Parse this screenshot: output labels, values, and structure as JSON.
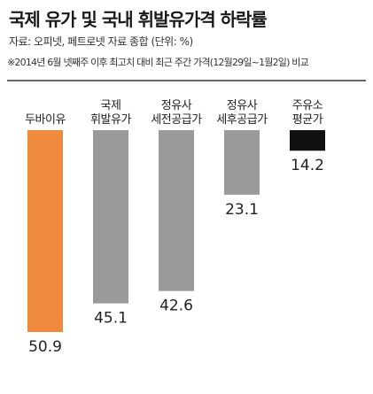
{
  "header": {
    "title": "국제 유가 및 국내 휘발유가격 하락률",
    "source": "자료: 오피넷, 페트로넷 자료 종합 (단위: %)",
    "note": "※2014년 6월 넷째주 이후 최고치 대비 최근 주간 가격(12월29일~1월2일) 비교"
  },
  "chart_data": {
    "type": "bar",
    "orientation": "vertical-downward",
    "categories": [
      [
        "두바이유"
      ],
      [
        "국제",
        "휘발유가"
      ],
      [
        "정유사",
        "세전공급가"
      ],
      [
        "정유사",
        "세후공급가"
      ],
      [
        "주유소",
        "평균가"
      ]
    ],
    "values": [
      50.9,
      45.1,
      42.6,
      23.1,
      14.2
    ],
    "value_labels": [
      "50.9",
      "45.1",
      "42.6",
      "23.1",
      "14.2"
    ],
    "colors": [
      "#f08a3c",
      "#9a9a9a",
      "#9a9a9a",
      "#9a9a9a",
      "#111111"
    ],
    "title": "국제 유가 및 국내 휘발유가격 하락률",
    "xlabel": "",
    "ylabel": "",
    "unit": "%",
    "grid": false,
    "legend": "none"
  }
}
